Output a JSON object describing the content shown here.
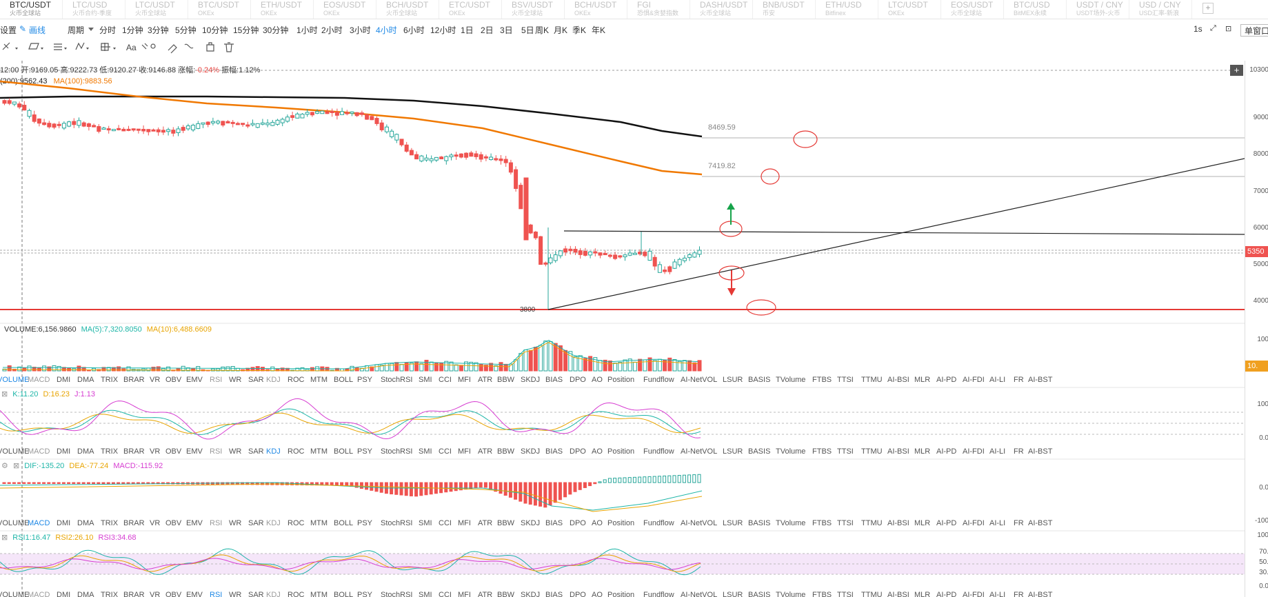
{
  "tabs": [
    {
      "symbol": "BTC/USDT",
      "source": "火币全球站",
      "active": true
    },
    {
      "symbol": "LTC/USD",
      "source": "火币合约-季度",
      "active": false
    },
    {
      "symbol": "LTC/USDT",
      "source": "火币全球站",
      "active": false
    },
    {
      "symbol": "BTC/USDT",
      "source": "OKEx",
      "active": false
    },
    {
      "symbol": "ETH/USDT",
      "source": "OKEx",
      "active": false
    },
    {
      "symbol": "EOS/USDT",
      "source": "OKEx",
      "active": false
    },
    {
      "symbol": "BCH/USDT",
      "source": "火币全球站",
      "active": false
    },
    {
      "symbol": "ETC/USDT",
      "source": "OKEx",
      "active": false
    },
    {
      "symbol": "BSV/USDT",
      "source": "火币全球站",
      "active": false
    },
    {
      "symbol": "BCH/USDT",
      "source": "OKEx",
      "active": false
    },
    {
      "symbol": "FGI",
      "source": "恐惧&贪婪指数",
      "active": false
    },
    {
      "symbol": "DASH/USDT",
      "source": "火币全球站",
      "active": false
    },
    {
      "symbol": "BNB/USDT",
      "source": "币安",
      "active": false
    },
    {
      "symbol": "ETH/USD",
      "source": "Bitfinex",
      "active": false
    },
    {
      "symbol": "LTC/USDT",
      "source": "OKEx",
      "active": false
    },
    {
      "symbol": "EOS/USDT",
      "source": "火币全球站",
      "active": false
    },
    {
      "symbol": "BTC/USD",
      "source": "BitMEX永续",
      "active": false
    },
    {
      "symbol": "USDT / CNY",
      "source": "USDT场外-火币",
      "active": false
    },
    {
      "symbol": "USD / CNY",
      "source": "USD汇率-新浪",
      "active": false
    }
  ],
  "tab_add": "+",
  "toolbar": {
    "settings": "设置",
    "draw_line": "画线",
    "period_label": "周期",
    "periods": [
      "分时",
      "1分钟",
      "3分钟",
      "5分钟",
      "10分钟",
      "15分钟",
      "30分钟",
      "1小时",
      "2小时",
      "3小时",
      "4小时",
      "6小时",
      "12小时",
      "1日",
      "2日",
      "3日",
      "5日",
      "周K",
      "月K",
      "季K",
      "年K"
    ],
    "active_period": "4小时",
    "refresh": "1s",
    "window_btn": "单窗口"
  },
  "draw_tools": [
    "text-icon",
    "Aa"
  ],
  "ohlc": {
    "time": "12:00",
    "open_label": "开:",
    "open": "9169.05",
    "high_label": "高:",
    "high": "9222.73",
    "low_label": "低:",
    "low": "9120.27",
    "close_label": "收:",
    "close": "9146.88",
    "change_label": "涨幅:",
    "change": "-0.24%",
    "amp_label": "振幅:",
    "amp": "1.12%"
  },
  "ma_legend": {
    "ma200": "(200):9562.43",
    "ma100": "MA(100):9883.56"
  },
  "price_labels": {
    "level1": "8469.59",
    "level2": "7419.82",
    "low": "3800"
  },
  "colors": {
    "up": "#26a69a",
    "down": "#ef5350",
    "ma200": "#111111",
    "ma100": "#f07800",
    "support": "#e53935",
    "arrow_up": "#16a34a",
    "arrow_down": "#e53935"
  },
  "volume_legend": {
    "label": "VOLUME:6,156.9860",
    "ma5": "MA(5):7,320.8050",
    "ma10": "MA(10):6,488.6609"
  },
  "indicators": [
    "VOLUME",
    "MACD",
    "DMI",
    "DMA",
    "TRIX",
    "BRAR",
    "VR",
    "OBV",
    "EMV",
    "RSI",
    "WR",
    "SAR",
    "KDJ",
    "ROC",
    "MTM",
    "BOLL",
    "PSY",
    "StochRSI",
    "SMI",
    "CCI",
    "MFI",
    "ATR",
    "BBW",
    "SKDJ",
    "BIAS",
    "DPO",
    "AO",
    "Position",
    "Fundflow",
    "AI-NetVOL",
    "LSUR",
    "BASIS",
    "TVolume",
    "FTBS",
    "TTSI",
    "TTMU",
    "AI-BSI",
    "MLR",
    "AI-PD",
    "AI-FDI",
    "AI-LI",
    "FR",
    "AI-BST"
  ],
  "kdj_legend": {
    "k": "K:11.20",
    "d": "D:16.23",
    "j": "J:1.13"
  },
  "macd_legend": {
    "dif": "DIF:-135.20",
    "dea": "DEA:-77.24",
    "macd": "MACD:-115.92"
  },
  "rsi_legend": {
    "rsi1": "RSI1:16.47",
    "rsi2": "RSI2:26.10",
    "rsi3": "RSI3:34.68"
  },
  "axis": {
    "price": [
      "10300",
      "9000",
      "8000",
      "7000",
      "6000",
      "5000",
      "4000"
    ],
    "current_price": "5350",
    "volume": [
      "100"
    ],
    "volume_tag": "10.",
    "kdj": [
      "100",
      "0.0"
    ],
    "macd": [
      "0.0",
      "-100"
    ],
    "rsi": [
      "100",
      "70.",
      "50.",
      "30.",
      "0.0"
    ]
  }
}
